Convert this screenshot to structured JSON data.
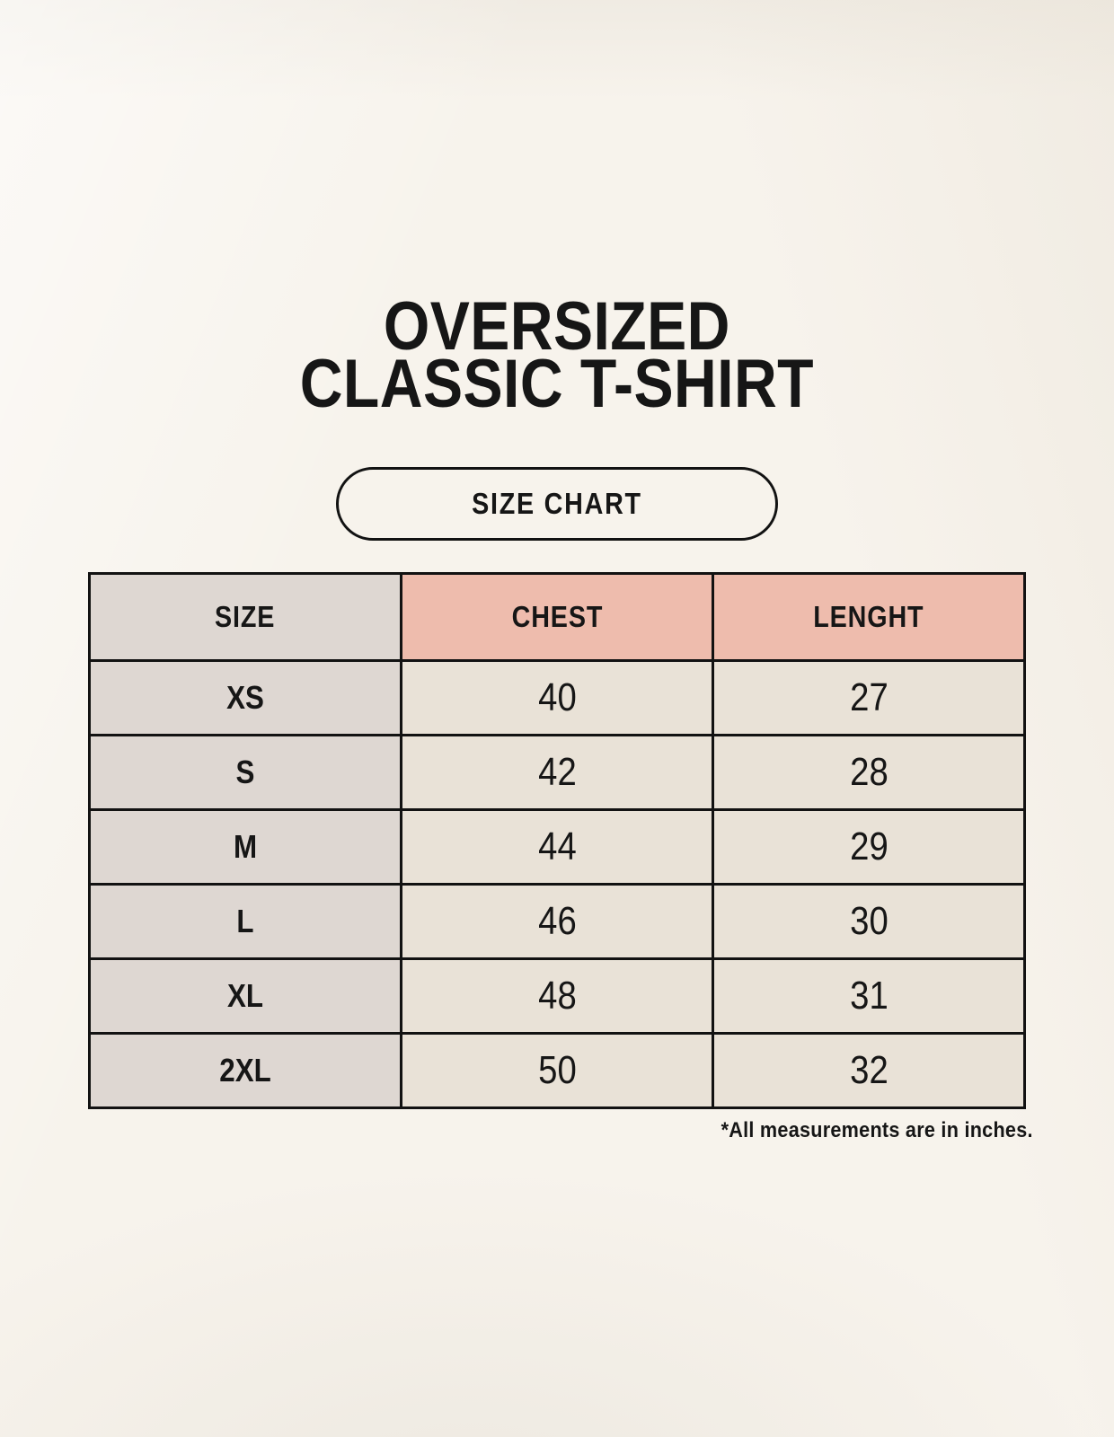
{
  "header": {
    "title_line1": "OVERSIZED",
    "title_line2": "CLASSIC T-SHIRT",
    "badge_label": "SIZE CHART"
  },
  "table": {
    "columns": [
      "SIZE",
      "CHEST",
      "LENGHT"
    ],
    "rows": [
      {
        "size": "XS",
        "chest": "40",
        "lenght": "27"
      },
      {
        "size": "S",
        "chest": "42",
        "lenght": "28"
      },
      {
        "size": "M",
        "chest": "44",
        "lenght": "29"
      },
      {
        "size": "L",
        "chest": "46",
        "lenght": "30"
      },
      {
        "size": "XL",
        "chest": "48",
        "lenght": "31"
      },
      {
        "size": "2XL",
        "chest": "50",
        "lenght": "32"
      }
    ],
    "footnote": "*All measurements are in inches.",
    "units": "inches"
  },
  "colors": {
    "background": "#f7f3ec",
    "size_cell_bg": "#ded7d2",
    "measure_header_bg": "#eebcad",
    "value_cell_bg": "#e9e2d7",
    "table_border": "#121212",
    "text": "#161616"
  }
}
